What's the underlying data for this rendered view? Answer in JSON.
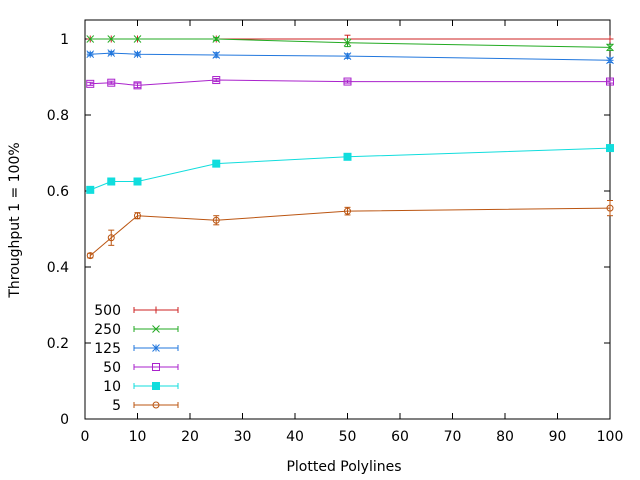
{
  "chart_data": {
    "type": "line",
    "title": "",
    "xlabel": "Plotted Polylines",
    "ylabel": "Throughput 1 = 100%",
    "xlim": [
      0,
      100
    ],
    "ylim": [
      0,
      1.05
    ],
    "xticks": [
      0,
      10,
      20,
      30,
      40,
      50,
      60,
      70,
      80,
      90,
      100
    ],
    "yticks": [
      0,
      0.2,
      0.4,
      0.6,
      0.8,
      1
    ],
    "ytick_labels": [
      "0",
      "0.2",
      "0.4",
      "0.6",
      "0.8",
      "1"
    ],
    "grid": false,
    "legend_position": "bottom-left",
    "x": [
      1,
      5,
      10,
      25,
      50,
      100
    ],
    "series": [
      {
        "name": "500",
        "color": "#cc2222",
        "marker": "plus",
        "values": [
          1.0,
          1.0,
          1.0,
          1.0,
          1.0,
          1.0
        ],
        "errors": [
          0,
          0,
          0,
          0,
          0.01,
          0
        ]
      },
      {
        "name": "250",
        "color": "#22aa22",
        "marker": "x",
        "values": [
          1.0,
          1.0,
          1.0,
          1.0,
          0.99,
          0.978
        ],
        "errors": [
          0,
          0,
          0,
          0.004,
          0.01,
          0.008
        ]
      },
      {
        "name": "125",
        "color": "#2277dd",
        "marker": "star",
        "values": [
          0.96,
          0.963,
          0.96,
          0.958,
          0.955,
          0.944
        ],
        "errors": [
          0.004,
          0.004,
          0.004,
          0.006,
          0.006,
          0.006
        ]
      },
      {
        "name": "50",
        "color": "#aa22cc",
        "marker": "square-open",
        "values": [
          0.882,
          0.885,
          0.878,
          0.892,
          0.888,
          0.888
        ],
        "errors": [
          0.004,
          0.004,
          0.006,
          0.004,
          0.004,
          0.004
        ]
      },
      {
        "name": "10",
        "color": "#11dddd",
        "marker": "square-filled",
        "values": [
          0.603,
          0.625,
          0.625,
          0.672,
          0.69,
          0.713
        ],
        "errors": [
          0.006,
          0.004,
          0.004,
          0.006,
          0.004,
          0.006
        ]
      },
      {
        "name": "5",
        "color": "#bb5511",
        "marker": "circle-open",
        "values": [
          0.43,
          0.477,
          0.535,
          0.523,
          0.547,
          0.555
        ],
        "errors": [
          0.006,
          0.02,
          0.008,
          0.012,
          0.01,
          0.02
        ]
      }
    ]
  }
}
